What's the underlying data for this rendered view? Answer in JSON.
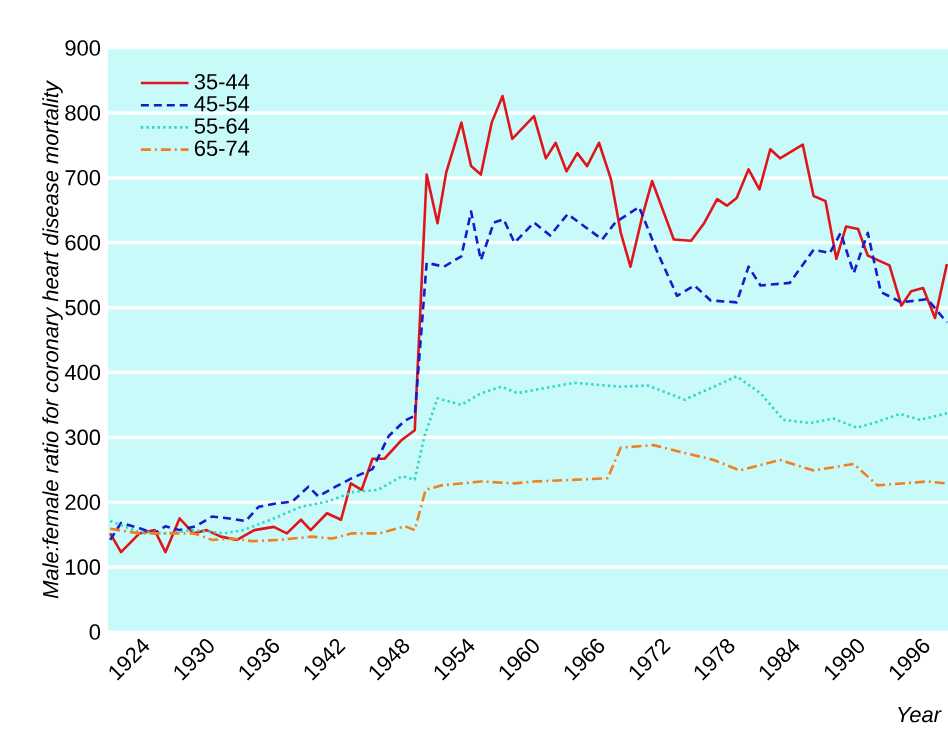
{
  "chart_data": {
    "type": "line",
    "xlabel": "Year",
    "ylabel": "Male:female ratio for coronary heart disease mortality",
    "xlim": [
      1921,
      1998.5
    ],
    "xticks": [
      1924,
      1930,
      1936,
      1942,
      1948,
      1954,
      1960,
      1966,
      1972,
      1978,
      1984,
      1990,
      1996
    ],
    "ylim": [
      0,
      900
    ],
    "yticks": [
      0,
      100,
      200,
      300,
      400,
      500,
      600,
      700,
      800,
      900
    ],
    "grid": "y",
    "legend": "top left",
    "series": [
      {
        "name": "35-44",
        "color": "#e0151b",
        "line_style": "solid",
        "x": [
          1921.2,
          1922.2,
          1923.9,
          1925.3,
          1926.3,
          1927.6,
          1928.9,
          1930.1,
          1931.4,
          1932.9,
          1934.5,
          1936.3,
          1937.5,
          1938.8,
          1939.7,
          1941.2,
          1942.5,
          1943.4,
          1944.4,
          1945.4,
          1946.5,
          1948.1,
          1949.3,
          1950.4,
          1951.4,
          1952.2,
          1953.6,
          1954.5,
          1955.4,
          1956.4,
          1957.4,
          1958.3,
          1960.3,
          1961.4,
          1962.3,
          1963.3,
          1964.3,
          1965.2,
          1966.3,
          1967.4,
          1968.3,
          1969.2,
          1970.3,
          1971.2,
          1973.2,
          1974.8,
          1976,
          1977.2,
          1978.1,
          1979,
          1980.1,
          1981.1,
          1982.1,
          1983,
          1985.1,
          1986.1,
          1987.2,
          1988.2,
          1989.1,
          1990.2,
          1991.1,
          1993.1,
          1994.2,
          1995.1,
          1996.2,
          1997.3,
          1998.4
        ],
        "values": [
          152,
          123,
          152,
          157,
          123,
          175,
          152,
          157,
          147,
          142,
          157,
          162,
          152,
          173,
          157,
          183,
          173,
          229,
          219,
          267,
          267,
          296,
          311,
          705,
          630,
          708,
          785,
          718,
          705,
          785,
          826,
          760,
          795,
          730,
          754,
          710,
          738,
          718,
          754,
          698,
          616,
          563,
          641,
          695,
          605,
          603,
          630,
          667,
          657,
          669,
          713,
          682,
          744,
          730,
          751,
          672,
          664,
          575,
          625,
          621,
          580,
          565,
          503,
          525,
          530,
          484,
          567
        ]
      },
      {
        "name": "45-54",
        "color": "#1a1ac8",
        "line_style": "dashed",
        "x": [
          1921.2,
          1922.2,
          1923.9,
          1925.3,
          1926.3,
          1927.6,
          1929.1,
          1930.6,
          1932.2,
          1933.7,
          1934.9,
          1936.5,
          1938,
          1939.5,
          1940.4,
          1942,
          1943.5,
          1945.4,
          1946.9,
          1948.4,
          1949.3,
          1950.4,
          1952,
          1953.6,
          1954.5,
          1955.4,
          1956.6,
          1957.5,
          1958.5,
          1960.3,
          1961.8,
          1963.4,
          1966.6,
          1967.8,
          1970,
          1971.7,
          1973.5,
          1975.1,
          1976.6,
          1979,
          1980.1,
          1981.2,
          1983.9,
          1986.1,
          1987.6,
          1988.6,
          1989.8,
          1991.1,
          1992.3,
          1994.2,
          1996.6,
          1998.4
        ],
        "values": [
          142,
          168,
          160,
          152,
          163,
          157,
          163,
          178,
          175,
          171,
          193,
          198,
          201,
          224,
          209,
          224,
          237,
          251,
          302,
          326,
          333,
          569,
          563,
          579,
          648,
          573,
          631,
          636,
          600,
          631,
          611,
          644,
          605,
          631,
          655,
          585,
          518,
          534,
          511,
          508,
          563,
          534,
          538,
          589,
          584,
          615,
          553,
          615,
          524,
          508,
          513,
          477
        ]
      },
      {
        "name": "55-64",
        "color": "#30d8c8",
        "line_style": "dotted",
        "x": [
          1921.2,
          1923.9,
          1926.4,
          1928.9,
          1931.7,
          1933.5,
          1936.3,
          1938.8,
          1941.2,
          1943.7,
          1945.9,
          1948.1,
          1949.3,
          1950.2,
          1951.4,
          1953.6,
          1955.4,
          1957.3,
          1958.8,
          1960.3,
          1964,
          1968.3,
          1970.8,
          1974.2,
          1976.9,
          1979,
          1981.2,
          1983.3,
          1985.8,
          1987.9,
          1990.1,
          1991.6,
          1994.1,
          1995.9,
          1998.4
        ],
        "values": [
          171,
          154,
          152,
          157,
          152,
          157,
          175,
          193,
          201,
          216,
          219,
          240,
          235,
          302,
          360,
          350,
          368,
          378,
          368,
          373,
          384,
          378,
          380,
          358,
          378,
          394,
          368,
          327,
          322,
          329,
          315,
          322,
          336,
          327,
          337
        ]
      },
      {
        "name": "65-74",
        "color": "#f08020",
        "line_style": "dashdot",
        "x": [
          1921.2,
          1923.9,
          1926.4,
          1928.9,
          1930.6,
          1932.5,
          1934.3,
          1936.8,
          1939.8,
          1941.7,
          1943.5,
          1946,
          1948.4,
          1949.3,
          1950.3,
          1951.8,
          1955.4,
          1958.5,
          1960.3,
          1964.6,
          1967.1,
          1968.3,
          1971.3,
          1974.2,
          1976.9,
          1979.3,
          1983,
          1986.1,
          1989.8,
          1992,
          1996.6,
          1998.4
        ],
        "values": [
          159,
          152,
          152,
          152,
          142,
          144,
          140,
          142,
          147,
          144,
          152,
          152,
          163,
          157,
          219,
          226,
          232,
          229,
          232,
          235,
          237,
          284,
          288,
          276,
          265,
          249,
          265,
          249,
          259,
          226,
          232,
          229
        ]
      }
    ]
  }
}
